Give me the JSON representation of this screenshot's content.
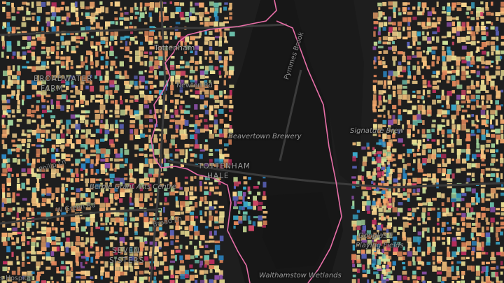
{
  "map": {
    "labels": {
      "tottenham": "Tottenham",
      "broadwater_farm_1": "BROADWATER",
      "broadwater_farm_2": "FARM",
      "tottenham_hale_1": "TOTTENHAM",
      "tottenham_hale_2": "HALE",
      "seven_sisters_1": "SEVEN",
      "seven_sisters_2": "SISTERS",
      "beavertown": "Beavertown Brewery",
      "signature": "Signature Brew",
      "douglas_1": "Douglas E",
      "douglas_2": "Playing Fields",
      "wetlands": "Walthamstow Wetlands",
      "arts_centre": "Bernie Grant Arts Centre",
      "pymmes": "Pymmes Brook",
      "broad_ln": "Broad Ln",
      "newton_rd": "Newton Rd",
      "philip_ln": "Philip Ln",
      "west_green": "W Green Rd",
      "hospital": "s Hospital"
    },
    "colors": {
      "background": "#1e1e1e",
      "water": "#171717",
      "boundary": "#e86fa8",
      "road": "#3d3d3d",
      "building_palette": [
        "#f6c17c",
        "#f9d48e",
        "#f3a76c",
        "#e88a5c",
        "#f0e396",
        "#cfe49a",
        "#a6d9a0",
        "#6fc6b1",
        "#3aa8c9",
        "#2b86c2",
        "#5a62b8",
        "#8a4fa6",
        "#d84a6b",
        "#b92d5d"
      ]
    }
  }
}
